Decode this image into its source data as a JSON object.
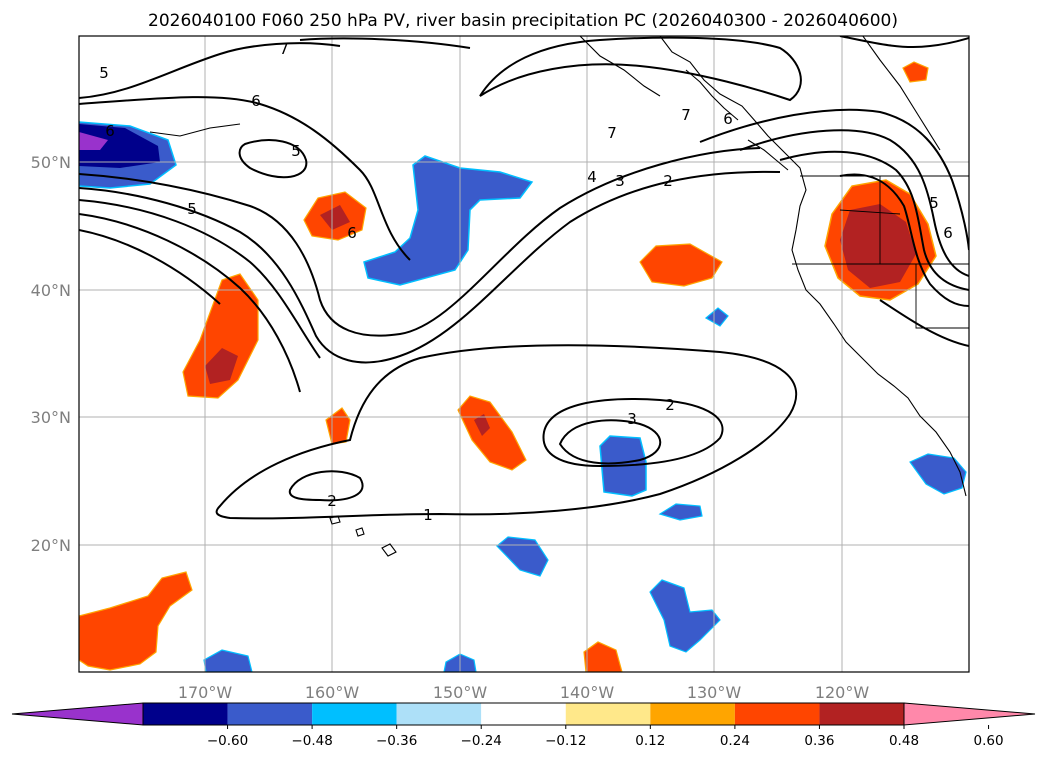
{
  "title": "2026040100 F060 250 hPa PV, river basin precipitation PC (2026040300 - 2026040600)",
  "axes": {
    "lon_labels": [
      "170°W",
      "160°W",
      "150°W",
      "140°W",
      "130°W",
      "120°W"
    ],
    "lat_labels": [
      "50°N",
      "40°N",
      "30°N",
      "20°N"
    ]
  },
  "colorbar": {
    "ticks": [
      "−0.60",
      "−0.48",
      "−0.36",
      "−0.24",
      "−0.12",
      "0.12",
      "0.24",
      "0.36",
      "0.48",
      "0.60"
    ],
    "colors": [
      "#9932CC",
      "#00008B",
      "#3A5BCB",
      "#00BFFF",
      "#ADE0F8",
      "#FFFFFF",
      "#FFE88A",
      "#FFA500",
      "#FF4500",
      "#B22222",
      "#FF88AA"
    ]
  },
  "contour_labels": [
    "7",
    "5",
    "6",
    "5",
    "6",
    "5",
    "6",
    "4",
    "3",
    "2",
    "7",
    "7",
    "6",
    "5",
    "6",
    "2",
    "3",
    "2",
    "1"
  ]
}
